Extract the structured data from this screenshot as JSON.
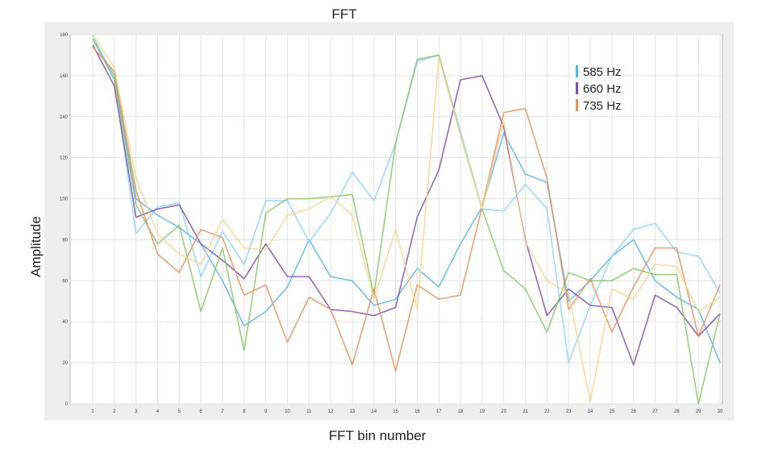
{
  "chart_data": {
    "type": "line",
    "title": "FFT",
    "xlabel": "FFT bin number",
    "ylabel": "Amplitude",
    "x": [
      1,
      2,
      3,
      4,
      5,
      6,
      7,
      8,
      9,
      10,
      11,
      12,
      13,
      14,
      15,
      16,
      17,
      18,
      19,
      20,
      21,
      22,
      23,
      24,
      25,
      26,
      27,
      28,
      29,
      30
    ],
    "xlim": [
      1,
      30
    ],
    "ylim": [
      0,
      180
    ],
    "yticks": [
      0,
      20,
      40,
      60,
      80,
      100,
      120,
      140,
      160,
      180
    ],
    "grid": true,
    "legend_position": "top-right",
    "legend": [
      {
        "name": "585 Hz",
        "color": "#5ab4e8"
      },
      {
        "name": "660 Hz",
        "color": "#7e4fb0"
      },
      {
        "name": "735 Hz",
        "color": "#e8915f"
      }
    ],
    "series": [
      {
        "name": "585 Hz",
        "color": "#5ab4e8",
        "values": [
          178,
          160,
          100,
          92,
          86,
          78,
          60,
          38,
          45,
          57,
          80,
          62,
          60,
          48,
          51,
          66,
          57,
          78,
          96,
          132,
          112,
          108,
          50,
          60,
          72,
          80,
          60,
          52,
          46,
          20
        ]
      },
      {
        "name": "",
        "color": "#8fd3f7",
        "values": [
          180,
          158,
          83,
          96,
          98,
          62,
          84,
          68,
          99,
          99,
          79,
          93,
          113,
          99,
          127,
          167,
          170,
          133,
          95,
          94,
          107,
          95,
          20,
          48,
          72,
          85,
          88,
          74,
          72,
          54
        ]
      },
      {
        "name": "660 Hz",
        "color": "#7e4fb0",
        "values": [
          175,
          155,
          91,
          95,
          97,
          78,
          70,
          61,
          78,
          62,
          62,
          46,
          45,
          43,
          47,
          91,
          114,
          158,
          160,
          135,
          80,
          43,
          56,
          48,
          47,
          19,
          53,
          47,
          33,
          44
        ]
      },
      {
        "name": "",
        "color": "#8ac76a",
        "values": [
          178,
          158,
          97,
          78,
          87,
          45,
          76,
          26,
          93,
          100,
          100,
          101,
          102,
          53,
          127,
          168,
          170,
          131,
          95,
          65,
          56,
          35,
          64,
          60,
          60,
          66,
          63,
          63,
          0,
          44
        ]
      },
      {
        "name": "735 Hz",
        "color": "#e8915f",
        "values": [
          174,
          162,
          104,
          73,
          64,
          85,
          81,
          53,
          58,
          30,
          52,
          46,
          19,
          56,
          16,
          58,
          51,
          53,
          96,
          142,
          144,
          110,
          46,
          61,
          35,
          57,
          76,
          76,
          33,
          58
        ]
      },
      {
        "name": "",
        "color": "#f5d68f",
        "values": [
          180,
          164,
          110,
          83,
          73,
          68,
          90,
          76,
          75,
          92,
          95,
          101,
          92,
          51,
          85,
          46,
          169,
          131,
          95,
          138,
          79,
          60,
          54,
          1,
          56,
          51,
          68,
          67,
          45,
          52
        ]
      }
    ]
  }
}
